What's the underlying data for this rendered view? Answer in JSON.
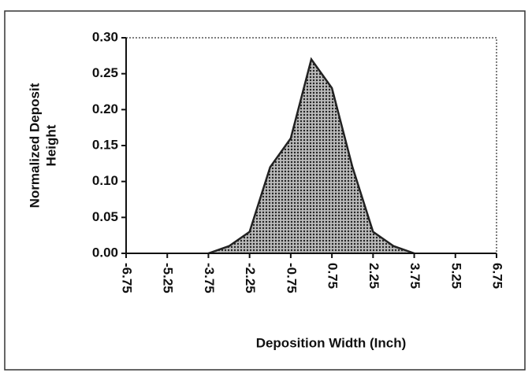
{
  "chart_data": {
    "type": "area",
    "x": [
      -3.75,
      -3,
      -2.25,
      -1.5,
      -0.75,
      0,
      0.75,
      1.5,
      2.25,
      3,
      3.75
    ],
    "values": [
      0,
      0.01,
      0.03,
      0.12,
      0.16,
      0.27,
      0.23,
      0.12,
      0.03,
      0.01,
      0
    ],
    "color": "#222",
    "xlabel": "Deposition  Width  (Inch)",
    "ylabel": [
      "Normalized  Deposit",
      "Height"
    ],
    "xlim": [
      -6.75,
      6.75
    ],
    "xticks": [
      -6.75,
      -5.25,
      -3.75,
      -2.25,
      -0.75,
      0.75,
      2.25,
      3.75,
      5.25,
      6.75
    ],
    "ylim": [
      0,
      0.3
    ],
    "yticks": [
      {
        "value": 0,
        "label": "0.00"
      },
      {
        "value": 0.05,
        "label": "0.05"
      },
      {
        "value": 0.1,
        "label": "0.10"
      },
      {
        "value": 0.15,
        "label": "0.15"
      },
      {
        "value": 0.2,
        "label": "0.20"
      },
      {
        "value": 0.25,
        "label": "0.25"
      },
      {
        "value": 0.3,
        "label": "0.30"
      }
    ]
  }
}
